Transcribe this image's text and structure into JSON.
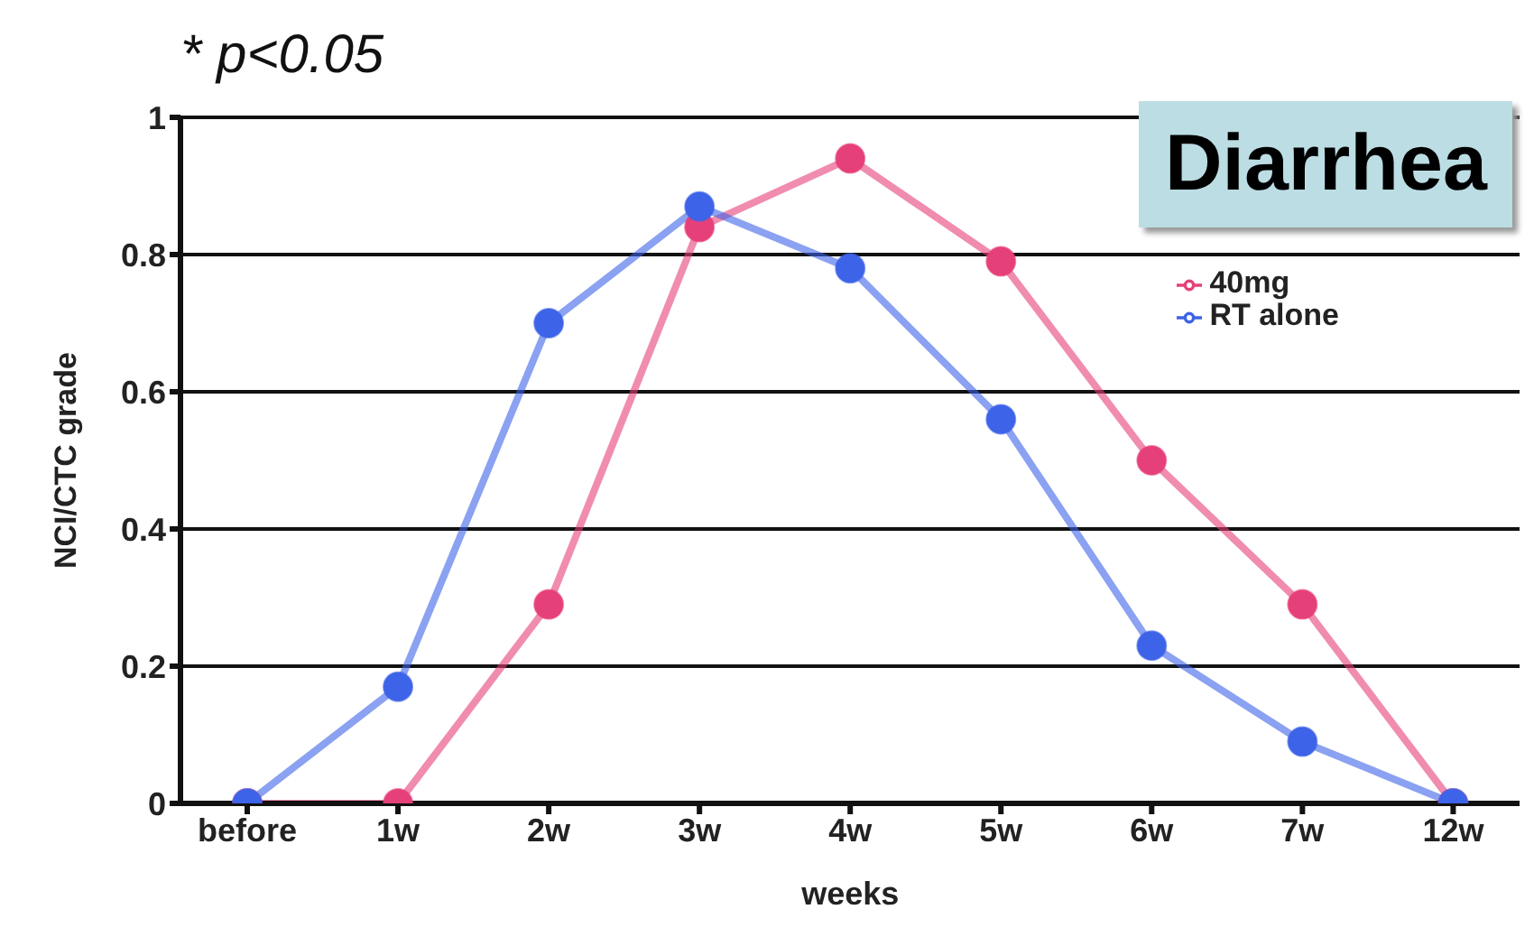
{
  "chart_data": {
    "type": "line",
    "title": "Diarrhea",
    "annotations": [
      "* p<0.05"
    ],
    "xlabel": "weeks",
    "ylabel": "NCI/CTC grade",
    "categories": [
      "before",
      "1w",
      "2w",
      "3w",
      "4w",
      "5w",
      "6w",
      "7w",
      "12w"
    ],
    "series": [
      {
        "name": "40mg",
        "color": "#e6407a",
        "values": [
          0,
          0,
          0.29,
          0.84,
          0.94,
          0.79,
          0.5,
          0.29,
          0
        ]
      },
      {
        "name": "RT alone",
        "color": "#3d63e8",
        "values": [
          0,
          0.17,
          0.7,
          0.87,
          0.78,
          0.56,
          0.23,
          0.09,
          0
        ]
      }
    ],
    "ylim": [
      0,
      1
    ],
    "yticks": [
      0,
      0.2,
      0.4,
      0.6,
      0.8,
      1
    ],
    "grid": "y",
    "legend": "top right",
    "marker": "circle",
    "line_style": "solid"
  }
}
